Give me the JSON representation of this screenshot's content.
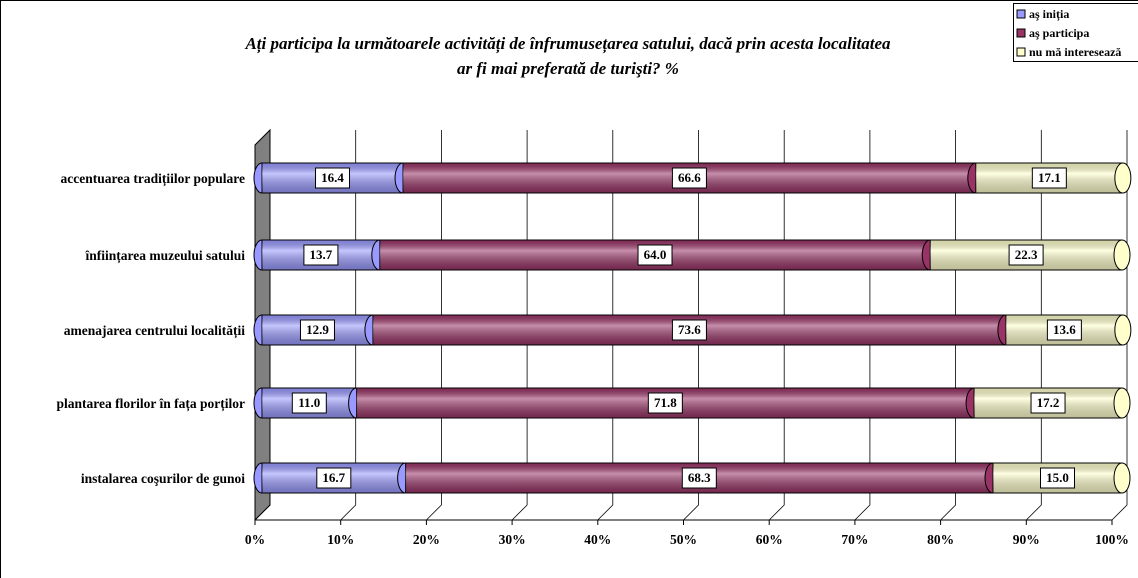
{
  "chart_data": {
    "type": "stacked_bar_horizontal",
    "title": [
      "Ați participa la următoarele activități de înfrumusețarea satului, dacă prin acesta localitatea",
      "ar fi mai preferată de turişti? %"
    ],
    "categories": [
      "accentuarea tradițiilor populare",
      "înființarea muzeului satului",
      "amenajarea centrului localității",
      "plantarea florilor în fața porților",
      "instalarea coşurilor de gunoi"
    ],
    "series": [
      {
        "name": "aş iniția",
        "color": "#9999ff",
        "values": [
          16.4,
          13.7,
          12.9,
          11.0,
          16.7
        ],
        "value_labels": [
          "16.4",
          "13.7",
          "12.9",
          "11.0",
          "16.7"
        ]
      },
      {
        "name": "aş participa",
        "color": "#993366",
        "values": [
          66.6,
          64.0,
          73.6,
          71.8,
          68.3
        ],
        "value_labels": [
          "66.6",
          "64.0",
          "73.6",
          "71.8",
          "68.3"
        ]
      },
      {
        "name": "nu mă interesează",
        "color": "#ffffcc",
        "values": [
          17.1,
          22.3,
          13.6,
          17.2,
          15.0
        ],
        "value_labels": [
          "17.1",
          "22.3",
          "13.6",
          "17.2",
          "15.0"
        ]
      }
    ],
    "xlim": [
      0,
      100
    ],
    "xticks": [
      {
        "value": 0,
        "label": "0%"
      },
      {
        "value": 10,
        "label": "10%"
      },
      {
        "value": 20,
        "label": "20%"
      },
      {
        "value": 30,
        "label": "30%"
      },
      {
        "value": 40,
        "label": "40%"
      },
      {
        "value": 50,
        "label": "50%"
      },
      {
        "value": 60,
        "label": "60%"
      },
      {
        "value": 70,
        "label": "70%"
      },
      {
        "value": 80,
        "label": "80%"
      },
      {
        "value": 90,
        "label": "90%"
      },
      {
        "value": 100,
        "label": "100%"
      }
    ],
    "grid": true,
    "legend": "top-right"
  }
}
